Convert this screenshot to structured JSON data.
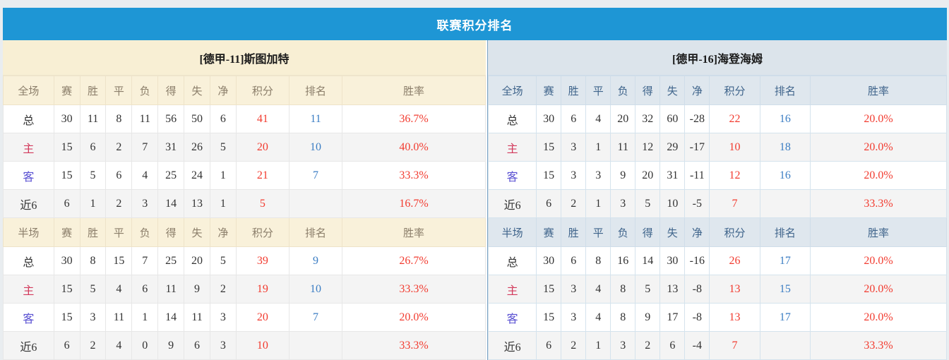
{
  "title": "联赛积分排名",
  "columns": [
    "赛",
    "胜",
    "平",
    "负",
    "得",
    "失",
    "净",
    "积分",
    "排名",
    "胜率"
  ],
  "colors": {
    "title_bar_blue": "#1e96d5",
    "left_header_cream": "#f8efd4",
    "right_header_blue_gray": "#dce4eb",
    "value_red": "#f23b2f",
    "rank_blue": "#3c7ec4",
    "home_label_red": "#d23a5c",
    "away_label_blue": "#5950d2"
  },
  "teams": [
    {
      "name": "[德甲-11]斯图加特",
      "sections": [
        {
          "scope": "全场",
          "rows": [
            {
              "label": "总",
              "label_color": "dark",
              "cells": [
                "30",
                "11",
                "8",
                "11",
                "56",
                "50",
                "6"
              ],
              "points": "41",
              "rank": "11",
              "rate": "36.7%"
            },
            {
              "label": "主",
              "label_color": "red",
              "cells": [
                "15",
                "6",
                "2",
                "7",
                "31",
                "26",
                "5"
              ],
              "points": "20",
              "rank": "10",
              "rate": "40.0%"
            },
            {
              "label": "客",
              "label_color": "blue",
              "cells": [
                "15",
                "5",
                "6",
                "4",
                "25",
                "24",
                "1"
              ],
              "points": "21",
              "rank": "7",
              "rate": "33.3%"
            },
            {
              "label": "近6",
              "label_color": "dark",
              "cells": [
                "6",
                "1",
                "2",
                "3",
                "14",
                "13",
                "1"
              ],
              "points": "5",
              "rank": "",
              "rate": "16.7%"
            }
          ]
        },
        {
          "scope": "半场",
          "rows": [
            {
              "label": "总",
              "label_color": "dark",
              "cells": [
                "30",
                "8",
                "15",
                "7",
                "25",
                "20",
                "5"
              ],
              "points": "39",
              "rank": "9",
              "rate": "26.7%"
            },
            {
              "label": "主",
              "label_color": "red",
              "cells": [
                "15",
                "5",
                "4",
                "6",
                "11",
                "9",
                "2"
              ],
              "points": "19",
              "rank": "10",
              "rate": "33.3%"
            },
            {
              "label": "客",
              "label_color": "blue",
              "cells": [
                "15",
                "3",
                "11",
                "1",
                "14",
                "11",
                "3"
              ],
              "points": "20",
              "rank": "7",
              "rate": "20.0%"
            },
            {
              "label": "近6",
              "label_color": "dark",
              "cells": [
                "6",
                "2",
                "4",
                "0",
                "9",
                "6",
                "3"
              ],
              "points": "10",
              "rank": "",
              "rate": "33.3%"
            }
          ]
        }
      ]
    },
    {
      "name": "[德甲-16]海登海姆",
      "sections": [
        {
          "scope": "全场",
          "rows": [
            {
              "label": "总",
              "label_color": "dark",
              "cells": [
                "30",
                "6",
                "4",
                "20",
                "32",
                "60",
                "-28"
              ],
              "points": "22",
              "rank": "16",
              "rate": "20.0%"
            },
            {
              "label": "主",
              "label_color": "red",
              "cells": [
                "15",
                "3",
                "1",
                "11",
                "12",
                "29",
                "-17"
              ],
              "points": "10",
              "rank": "18",
              "rate": "20.0%"
            },
            {
              "label": "客",
              "label_color": "blue",
              "cells": [
                "15",
                "3",
                "3",
                "9",
                "20",
                "31",
                "-11"
              ],
              "points": "12",
              "rank": "16",
              "rate": "20.0%"
            },
            {
              "label": "近6",
              "label_color": "dark",
              "cells": [
                "6",
                "2",
                "1",
                "3",
                "5",
                "10",
                "-5"
              ],
              "points": "7",
              "rank": "",
              "rate": "33.3%"
            }
          ]
        },
        {
          "scope": "半场",
          "rows": [
            {
              "label": "总",
              "label_color": "dark",
              "cells": [
                "30",
                "6",
                "8",
                "16",
                "14",
                "30",
                "-16"
              ],
              "points": "26",
              "rank": "17",
              "rate": "20.0%"
            },
            {
              "label": "主",
              "label_color": "red",
              "cells": [
                "15",
                "3",
                "4",
                "8",
                "5",
                "13",
                "-8"
              ],
              "points": "13",
              "rank": "15",
              "rate": "20.0%"
            },
            {
              "label": "客",
              "label_color": "blue",
              "cells": [
                "15",
                "3",
                "4",
                "8",
                "9",
                "17",
                "-8"
              ],
              "points": "13",
              "rank": "17",
              "rate": "20.0%"
            },
            {
              "label": "近6",
              "label_color": "dark",
              "cells": [
                "6",
                "2",
                "1",
                "3",
                "2",
                "6",
                "-4"
              ],
              "points": "7",
              "rank": "",
              "rate": "33.3%"
            }
          ]
        }
      ]
    }
  ]
}
